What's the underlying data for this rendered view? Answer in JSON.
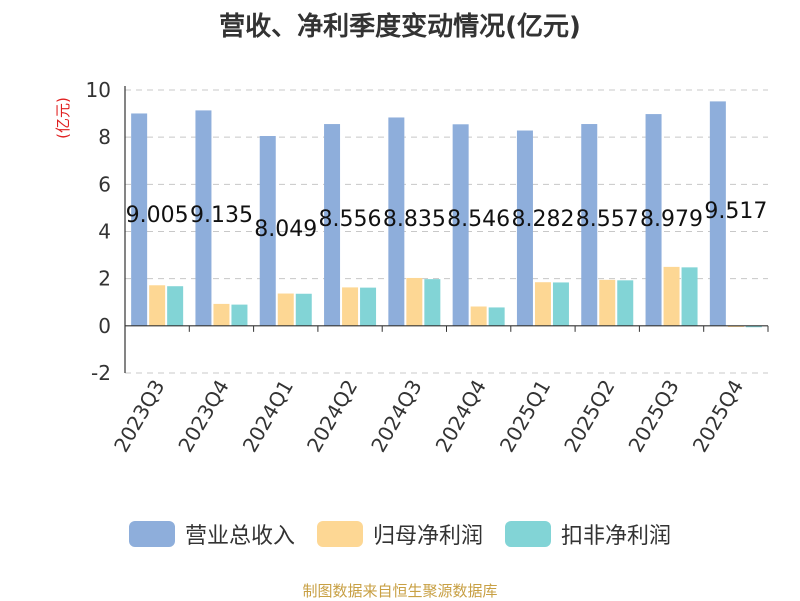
{
  "title": "营收、净利季度变动情况(亿元)",
  "source": "制图数据来自恒生聚源数据库",
  "chart_data": {
    "type": "bar",
    "ylabel": "(亿元)",
    "ylim": [
      -2,
      10
    ],
    "yticks": [
      -2,
      0,
      2,
      4,
      6,
      8,
      10
    ],
    "grid": true,
    "legend_position": "bottom",
    "categories": [
      "2023Q3",
      "2023Q4",
      "2024Q1",
      "2024Q2",
      "2024Q3",
      "2024Q4",
      "2025Q1",
      "2025Q2",
      "2025Q3",
      "2025Q4"
    ],
    "series": [
      {
        "name": "营业总收入",
        "color": "#8eaedb",
        "values": [
          9.005,
          9.135,
          8.049,
          8.556,
          8.835,
          8.546,
          8.282,
          8.557,
          8.979,
          9.517
        ],
        "labels": [
          "9.005",
          "9.135",
          "8.049",
          "8.556",
          "8.835",
          "8.546",
          "8.282",
          "8.557",
          "8.979",
          "9.517"
        ]
      },
      {
        "name": "归母净利润",
        "color": "#fdd794",
        "values": [
          1.72,
          0.93,
          1.37,
          1.63,
          2.03,
          0.82,
          1.85,
          1.95,
          2.5,
          -0.05
        ]
      },
      {
        "name": "扣非净利润",
        "color": "#82d4d6",
        "values": [
          1.68,
          0.9,
          1.36,
          1.62,
          1.98,
          0.78,
          1.84,
          1.93,
          2.48,
          -0.06
        ]
      }
    ]
  }
}
